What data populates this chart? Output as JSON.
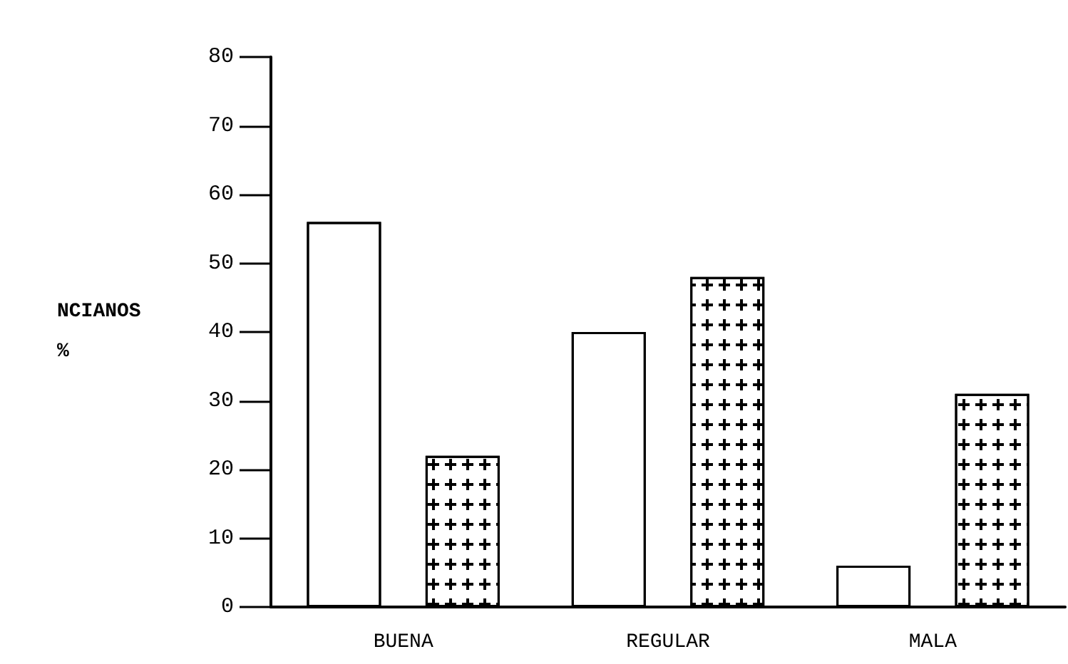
{
  "chart_data": {
    "type": "bar",
    "ylabel": "NCIANOS\n%",
    "categories": [
      "BUENA",
      "REGULAR",
      "MALA"
    ],
    "series": [
      {
        "color": "#ffffff",
        "values": [
          56,
          40,
          6
        ]
      },
      {
        "color": "#ffffff",
        "values": [
          22,
          48,
          31
        ]
      }
    ],
    "ylim": [
      0,
      80
    ],
    "yticks": [
      0,
      10,
      20,
      30,
      40,
      50,
      60,
      70,
      80
    ],
    "grid": false
  }
}
